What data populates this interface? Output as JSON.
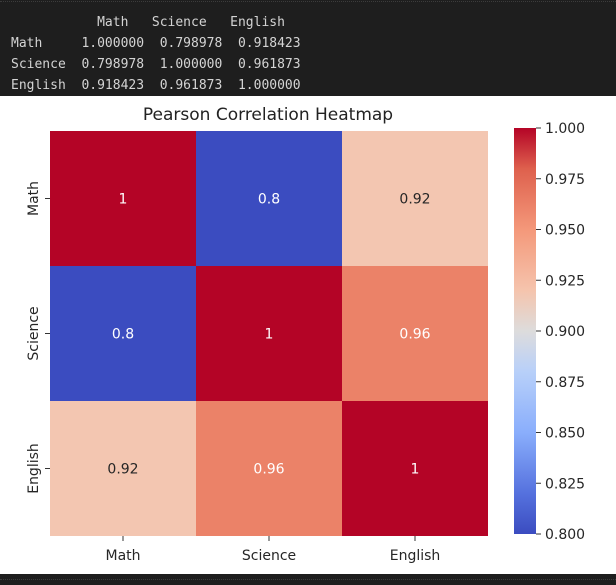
{
  "console": {
    "lines": [
      "           Math   Science   English",
      "Math     1.000000  0.798978  0.918423",
      "Science  0.798978  1.000000  0.961873",
      "English  0.918423  0.961873  1.000000"
    ]
  },
  "colors": {
    "background_dark": "#1e1e1e",
    "console_text": "#d4d4d4",
    "figure_background": "#ffffff"
  },
  "chart_data": {
    "type": "heatmap",
    "title": "Pearson Correlation Heatmap",
    "x_categories": [
      "Math",
      "Science",
      "English"
    ],
    "y_categories": [
      "Math",
      "Science",
      "English"
    ],
    "values": [
      [
        1.0,
        0.798978,
        0.918423
      ],
      [
        0.798978,
        1.0,
        0.961873
      ],
      [
        0.918423,
        0.961873,
        1.0
      ]
    ],
    "annotations": [
      [
        "1",
        "0.8",
        "0.92"
      ],
      [
        "0.8",
        "1",
        "0.96"
      ],
      [
        "0.92",
        "0.96",
        "1"
      ]
    ],
    "colormap": "coolwarm",
    "vmin": 0.8,
    "vmax": 1.0,
    "colorbar_ticks": [
      "0.800",
      "0.825",
      "0.850",
      "0.875",
      "0.900",
      "0.925",
      "0.950",
      "0.975",
      "1.000"
    ],
    "xlabel": "",
    "ylabel": ""
  }
}
